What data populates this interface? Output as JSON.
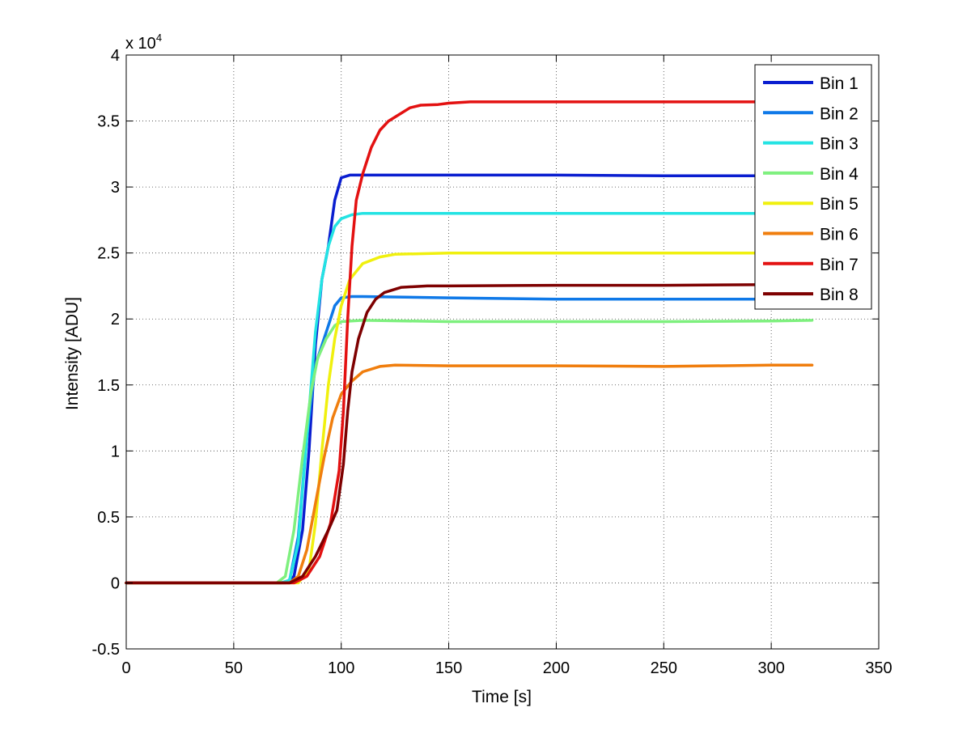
{
  "chart_data": {
    "type": "line",
    "title": "",
    "xlabel": "Time [s]",
    "ylabel": "Intensity [ADU]",
    "y_multiplier_label": "x 10",
    "y_multiplier_exponent": "4",
    "xlim": [
      0,
      350
    ],
    "ylim": [
      -0.5,
      4
    ],
    "x_ticks": [
      0,
      50,
      100,
      150,
      200,
      250,
      300,
      350
    ],
    "x_tick_labels": [
      "0",
      "50",
      "100",
      "150",
      "200",
      "250",
      "300",
      "350"
    ],
    "y_ticks": [
      -0.5,
      0,
      0.5,
      1,
      1.5,
      2,
      2.5,
      3,
      3.5,
      4
    ],
    "y_tick_labels": [
      "-0.5",
      "0",
      "0.5",
      "1",
      "1.5",
      "2",
      "2.5",
      "3",
      "3.5",
      "4"
    ],
    "grid": true,
    "legend_position": "top-right",
    "series": [
      {
        "name": "Bin 1",
        "color": "#0a1ed0",
        "points": [
          [
            0,
            0
          ],
          [
            70,
            0
          ],
          [
            74,
            0
          ],
          [
            78,
            0.05
          ],
          [
            82,
            0.4
          ],
          [
            85,
            1.0
          ],
          [
            88,
            1.8
          ],
          [
            91,
            2.3
          ],
          [
            94,
            2.55
          ],
          [
            97,
            2.9
          ],
          [
            100,
            3.07
          ],
          [
            104,
            3.09
          ],
          [
            110,
            3.09
          ],
          [
            150,
            3.09
          ],
          [
            200,
            3.09
          ],
          [
            250,
            3.085
          ],
          [
            300,
            3.085
          ],
          [
            319,
            3.09
          ]
        ]
      },
      {
        "name": "Bin 2",
        "color": "#0f79e8",
        "points": [
          [
            0,
            0
          ],
          [
            72,
            0
          ],
          [
            76,
            0.02
          ],
          [
            80,
            0.35
          ],
          [
            84,
            1.1
          ],
          [
            88,
            1.65
          ],
          [
            91,
            1.8
          ],
          [
            94,
            1.95
          ],
          [
            97,
            2.1
          ],
          [
            100,
            2.16
          ],
          [
            105,
            2.17
          ],
          [
            110,
            2.17
          ],
          [
            150,
            2.16
          ],
          [
            200,
            2.15
          ],
          [
            250,
            2.15
          ],
          [
            300,
            2.15
          ],
          [
            319,
            2.16
          ]
        ]
      },
      {
        "name": "Bin 3",
        "color": "#23e3e3",
        "points": [
          [
            0,
            0
          ],
          [
            72,
            0
          ],
          [
            76,
            0.02
          ],
          [
            80,
            0.3
          ],
          [
            84,
            1.1
          ],
          [
            88,
            1.9
          ],
          [
            91,
            2.3
          ],
          [
            94,
            2.55
          ],
          [
            97,
            2.7
          ],
          [
            100,
            2.76
          ],
          [
            105,
            2.79
          ],
          [
            110,
            2.8
          ],
          [
            150,
            2.8
          ],
          [
            200,
            2.8
          ],
          [
            250,
            2.8
          ],
          [
            300,
            2.8
          ],
          [
            319,
            2.8
          ]
        ]
      },
      {
        "name": "Bin 4",
        "color": "#7ef07e",
        "points": [
          [
            0,
            0
          ],
          [
            70,
            0
          ],
          [
            74,
            0.05
          ],
          [
            78,
            0.4
          ],
          [
            82,
            0.95
          ],
          [
            86,
            1.45
          ],
          [
            89,
            1.7
          ],
          [
            93,
            1.85
          ],
          [
            97,
            1.95
          ],
          [
            100,
            1.98
          ],
          [
            110,
            1.99
          ],
          [
            150,
            1.98
          ],
          [
            200,
            1.98
          ],
          [
            250,
            1.98
          ],
          [
            300,
            1.985
          ],
          [
            319,
            1.99
          ]
        ]
      },
      {
        "name": "Bin 5",
        "color": "#f0f00e",
        "points": [
          [
            0,
            0
          ],
          [
            80,
            0
          ],
          [
            85,
            0.1
          ],
          [
            88,
            0.45
          ],
          [
            91,
            1.0
          ],
          [
            94,
            1.5
          ],
          [
            97,
            1.85
          ],
          [
            100,
            2.1
          ],
          [
            104,
            2.3
          ],
          [
            110,
            2.42
          ],
          [
            118,
            2.47
          ],
          [
            125,
            2.49
          ],
          [
            150,
            2.5
          ],
          [
            200,
            2.5
          ],
          [
            250,
            2.5
          ],
          [
            300,
            2.5
          ],
          [
            319,
            2.5
          ]
        ]
      },
      {
        "name": "Bin 6",
        "color": "#f07e0e",
        "points": [
          [
            0,
            0
          ],
          [
            76,
            0
          ],
          [
            80,
            0.05
          ],
          [
            84,
            0.25
          ],
          [
            88,
            0.6
          ],
          [
            92,
            0.95
          ],
          [
            96,
            1.25
          ],
          [
            100,
            1.43
          ],
          [
            105,
            1.53
          ],
          [
            110,
            1.6
          ],
          [
            118,
            1.64
          ],
          [
            125,
            1.65
          ],
          [
            150,
            1.645
          ],
          [
            200,
            1.645
          ],
          [
            250,
            1.64
          ],
          [
            300,
            1.65
          ],
          [
            319,
            1.65
          ]
        ]
      },
      {
        "name": "Bin 7",
        "color": "#e31111",
        "points": [
          [
            0,
            0
          ],
          [
            78,
            0
          ],
          [
            84,
            0.05
          ],
          [
            90,
            0.2
          ],
          [
            95,
            0.45
          ],
          [
            99,
            0.85
          ],
          [
            101,
            1.3
          ],
          [
            103,
            2.0
          ],
          [
            105,
            2.55
          ],
          [
            107,
            2.9
          ],
          [
            110,
            3.1
          ],
          [
            114,
            3.3
          ],
          [
            118,
            3.43
          ],
          [
            122,
            3.5
          ],
          [
            127,
            3.55
          ],
          [
            132,
            3.6
          ],
          [
            137,
            3.62
          ],
          [
            145,
            3.625
          ],
          [
            150,
            3.635
          ],
          [
            160,
            3.645
          ],
          [
            200,
            3.645
          ],
          [
            250,
            3.645
          ],
          [
            300,
            3.645
          ],
          [
            319,
            3.645
          ]
        ]
      },
      {
        "name": "Bin 8",
        "color": "#7e0000",
        "points": [
          [
            0,
            0
          ],
          [
            76,
            0
          ],
          [
            82,
            0.05
          ],
          [
            88,
            0.2
          ],
          [
            94,
            0.4
          ],
          [
            98,
            0.55
          ],
          [
            101,
            0.9
          ],
          [
            103,
            1.3
          ],
          [
            105,
            1.6
          ],
          [
            108,
            1.85
          ],
          [
            112,
            2.05
          ],
          [
            116,
            2.15
          ],
          [
            120,
            2.2
          ],
          [
            128,
            2.24
          ],
          [
            140,
            2.25
          ],
          [
            150,
            2.25
          ],
          [
            200,
            2.255
          ],
          [
            250,
            2.255
          ],
          [
            300,
            2.26
          ],
          [
            319,
            2.26
          ]
        ]
      }
    ]
  }
}
